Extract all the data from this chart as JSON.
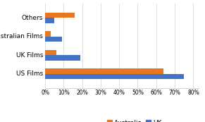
{
  "categories": [
    "US Films",
    "UK Films",
    "Australian Films",
    "Others"
  ],
  "australia_values": [
    64,
    6,
    3,
    16
  ],
  "uk_values": [
    75,
    19,
    9,
    5
  ],
  "australia_color": "#E87722",
  "uk_color": "#4472C4",
  "xticks": [
    0,
    10,
    20,
    30,
    40,
    50,
    60,
    70,
    80
  ],
  "xlim": [
    0,
    83
  ],
  "background_color": "#ffffff",
  "legend_labels": [
    "Australia",
    "UK"
  ],
  "bar_height": 0.28,
  "fontsize_labels": 6.5,
  "fontsize_ticks": 5.5,
  "fontsize_legend": 6.5,
  "grid_color": "#d9d9d9"
}
